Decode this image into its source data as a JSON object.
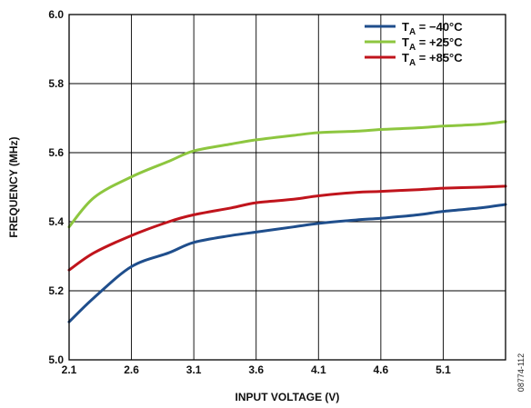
{
  "chart_data": {
    "type": "line",
    "xlabel": "INPUT VOLTAGE (V)",
    "ylabel": "FREQUENCY (MHz)",
    "xlim": [
      2.1,
      5.6
    ],
    "ylim": [
      5.0,
      6.0
    ],
    "x_ticks": [
      "2.1",
      "2.6",
      "3.1",
      "3.6",
      "4.1",
      "4.6",
      "5.1"
    ],
    "y_ticks": [
      "5.0",
      "5.2",
      "5.4",
      "5.6",
      "5.8",
      "6.0"
    ],
    "grid": true,
    "legend_position": "top-right",
    "figure_id": "08774-112",
    "x": [
      2.1,
      2.3,
      2.6,
      2.9,
      3.1,
      3.4,
      3.6,
      3.9,
      4.1,
      4.4,
      4.6,
      4.9,
      5.1,
      5.4,
      5.6
    ],
    "series": [
      {
        "sub": "A",
        "label_suffix": " = −40°C",
        "color": "#1f4e8c",
        "values": [
          5.11,
          5.18,
          5.27,
          5.31,
          5.34,
          5.36,
          5.37,
          5.385,
          5.395,
          5.405,
          5.41,
          5.42,
          5.43,
          5.44,
          5.45
        ]
      },
      {
        "sub": "A",
        "label_suffix": " = +25°C",
        "color": "#8dc63f",
        "values": [
          5.385,
          5.47,
          5.53,
          5.575,
          5.605,
          5.625,
          5.637,
          5.65,
          5.658,
          5.662,
          5.667,
          5.672,
          5.677,
          5.682,
          5.69
        ]
      },
      {
        "sub": "A",
        "label_suffix": " = +85°C",
        "color": "#c0141c",
        "values": [
          5.26,
          5.31,
          5.36,
          5.4,
          5.42,
          5.44,
          5.455,
          5.465,
          5.475,
          5.485,
          5.488,
          5.493,
          5.497,
          5.5,
          5.503
        ]
      }
    ]
  }
}
